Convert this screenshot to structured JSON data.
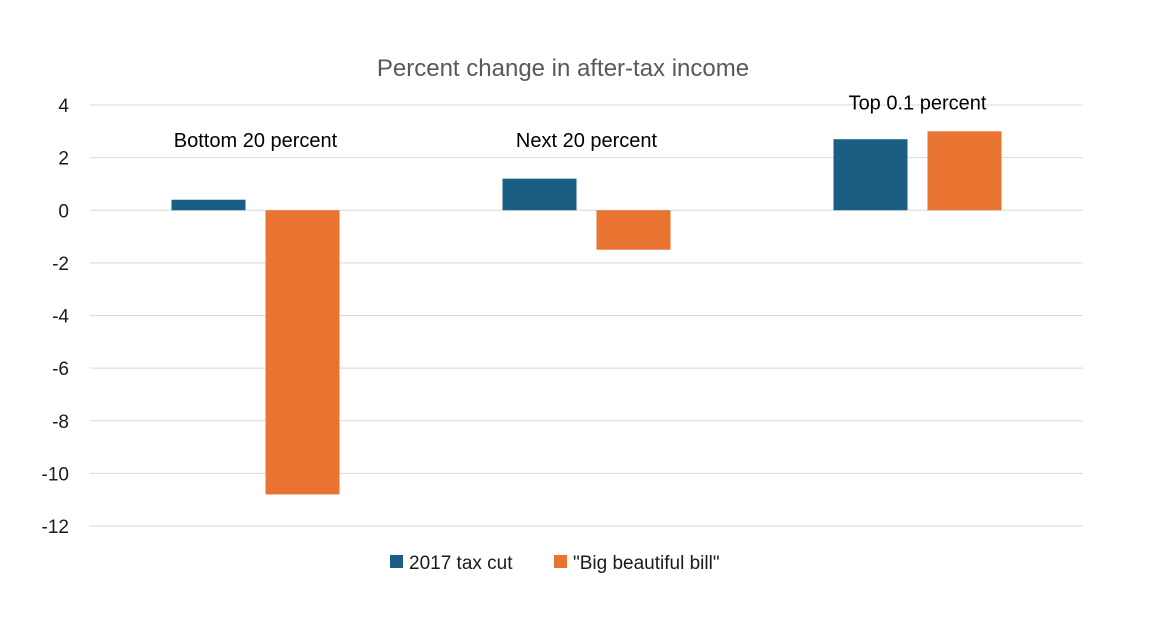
{
  "chart_data": {
    "type": "bar",
    "title": "Percent change in after-tax income",
    "categories": [
      "Bottom 20 percent",
      "Next 20 percent",
      "Top 0.1 percent"
    ],
    "series": [
      {
        "name": "2017 tax cut",
        "values": [
          0.4,
          1.2,
          2.7
        ],
        "color": "#1b5e83"
      },
      {
        "name": "\"Big beautiful bill\"",
        "values": [
          -10.8,
          -1.5,
          3.0
        ],
        "color": "#e97431"
      }
    ],
    "ylim": [
      -12,
      4
    ],
    "yticks": [
      4,
      2,
      0,
      -2,
      -4,
      -6,
      -8,
      -10,
      -12
    ],
    "ytick_labels": [
      "4",
      "2",
      "0",
      "-2",
      "-4",
      "-6",
      "-8",
      "-10",
      "-12"
    ],
    "grid": true,
    "legend_position": "bottom",
    "xlabel": "",
    "ylabel": ""
  }
}
